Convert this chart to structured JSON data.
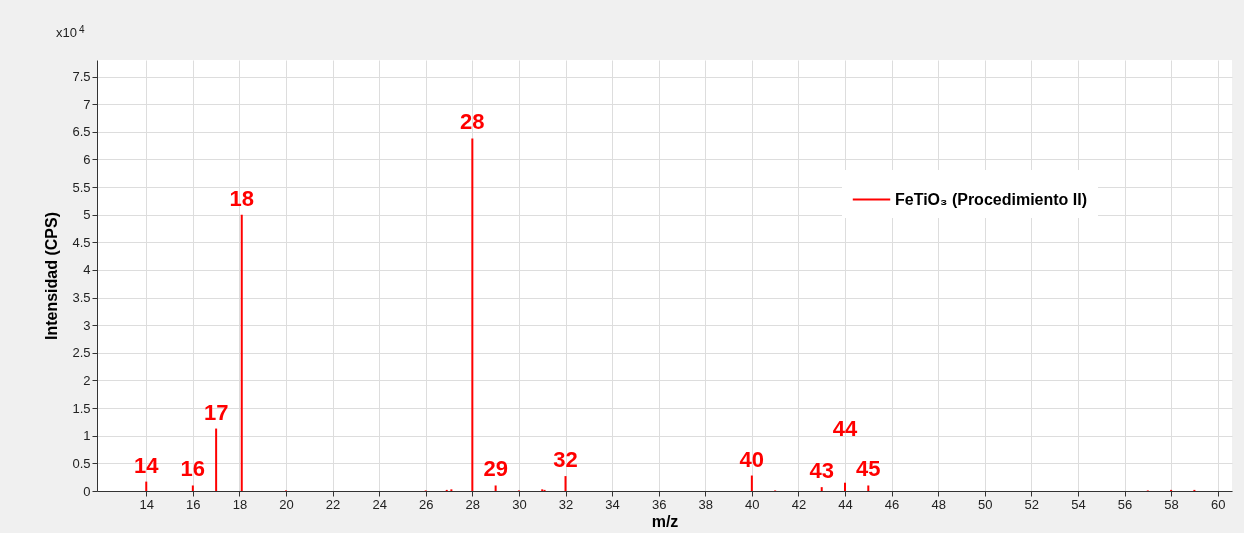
{
  "chart_data": {
    "type": "bar",
    "xlabel": "m/z",
    "ylabel": "Intensidad (CPS)",
    "x": [
      14,
      16,
      17,
      18.1,
      20,
      26,
      26.9,
      27.1,
      28,
      29,
      30,
      31,
      31.1,
      32,
      40,
      41,
      43,
      44,
      45,
      57,
      58,
      59
    ],
    "series": [
      {
        "name": "FeTiO₃ (Procedimiento II)",
        "color": "#ff0000",
        "values": [
          0.17,
          0.1,
          1.13,
          5.0,
          0.01,
          0.01,
          0.02,
          0.03,
          6.38,
          0.1,
          0.01,
          0.03,
          0.02,
          0.27,
          0.28,
          0.01,
          0.07,
          0.15,
          0.1,
          0.01,
          0.02,
          0.02
        ]
      }
    ],
    "xlim": [
      12.1,
      60.4
    ],
    "xticks": [
      14,
      16,
      18,
      20,
      22,
      24,
      26,
      28,
      30,
      32,
      34,
      36,
      38,
      40,
      42,
      44,
      46,
      48,
      50,
      52,
      54,
      56,
      58,
      60
    ],
    "ylim": [
      0,
      7.8
    ],
    "yticks": [
      0,
      0.5,
      1,
      1.5,
      2,
      2.5,
      3,
      3.5,
      4,
      4.5,
      5,
      5.5,
      6,
      6.5,
      7,
      7.5
    ],
    "grid": true,
    "legend": "top right",
    "annotations": [
      "x10$^{4}$",
      {
        "text": "14",
        "x": 14,
        "y": 0.17
      },
      {
        "text": "16",
        "x": 16,
        "y": 0.1
      },
      {
        "text": "17",
        "x": 17,
        "y": 1.13
      },
      {
        "text": "18",
        "x": 18.1,
        "y": 5.0
      },
      {
        "text": "28",
        "x": 28,
        "y": 6.38
      },
      {
        "text": "29",
        "x": 29,
        "y": 0.1
      },
      {
        "text": "32",
        "x": 32,
        "y": 0.27
      },
      {
        "text": "40",
        "x": 40,
        "y": 0.28
      },
      {
        "text": "43",
        "x": 43,
        "y": 0.07
      },
      {
        "text": "44",
        "x": 44,
        "y": 0.15
      },
      {
        "text": "45",
        "x": 45,
        "y": 0.1
      }
    ]
  }
}
